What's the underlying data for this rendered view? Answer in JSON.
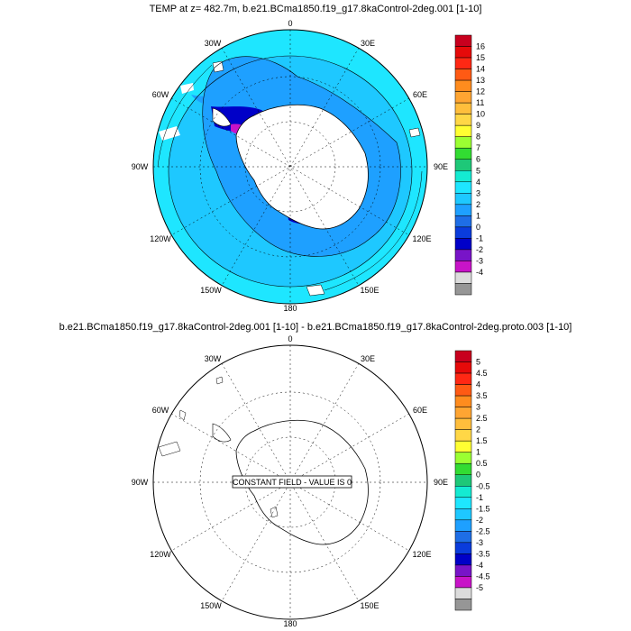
{
  "panel1": {
    "title": "TEMP at z= 482.7m, b.e21.BCma1850.f19_g17.8kaControl-2deg.001 [1-10]",
    "lon_labels": {
      "top": "0",
      "top_left": "30W",
      "top_right": "30E",
      "left_upper": "60W",
      "right_upper": "60E",
      "left": "90W",
      "right": "90E",
      "left_lower": "120W",
      "right_lower": "120E",
      "bottom_left": "150W",
      "bottom_right": "150E",
      "bottom": "180"
    },
    "colorbar": {
      "labels": [
        "16",
        "15",
        "14",
        "13",
        "12",
        "11",
        "10",
        "9",
        "8",
        "7",
        "6",
        "5",
        "4",
        "3",
        "2",
        "1",
        "0",
        "-1",
        "-2",
        "-3",
        "-4"
      ],
      "colors": [
        "#c8001e",
        "#e60a0a",
        "#ff2814",
        "#ff5a14",
        "#ff8c1e",
        "#ffa532",
        "#ffbe3c",
        "#ffd746",
        "#ffff32",
        "#9bff32",
        "#32dc32",
        "#1ec878",
        "#14ebd2",
        "#1ee6ff",
        "#1ec8ff",
        "#1ea0ff",
        "#1e6ee6",
        "#0a3cdc",
        "#0000c8",
        "#7814c8",
        "#c814c8",
        "#dcdcdc",
        "#969696"
      ]
    }
  },
  "panel2": {
    "title": "b.e21.BCma1850.f19_g17.8kaControl-2deg.001 [1-10] - b.e21.BCma1850.f19_g17.8kaControl-2deg.proto.003 [1-10]",
    "lon_labels": {
      "top": "0",
      "top_left": "30W",
      "top_right": "30E",
      "left_upper": "60W",
      "right_upper": "60E",
      "left": "90W",
      "right": "90E",
      "left_lower": "120W",
      "right_lower": "120E",
      "bottom_left": "150W",
      "bottom_right": "150E",
      "bottom": "180"
    },
    "constant_note": "CONSTANT FIELD - VALUE IS 0",
    "colorbar": {
      "labels": [
        "5",
        "4.5",
        "4",
        "3.5",
        "3",
        "2.5",
        "2",
        "1.5",
        "1",
        "0.5",
        "0",
        "-0.5",
        "-1",
        "-1.5",
        "-2",
        "-2.5",
        "-3",
        "-3.5",
        "-4",
        "-4.5",
        "-5"
      ],
      "colors": [
        "#c8001e",
        "#e60a0a",
        "#ff2814",
        "#ff5a14",
        "#ff8c1e",
        "#ffa532",
        "#ffbe3c",
        "#ffd746",
        "#ffff32",
        "#9bff32",
        "#32dc32",
        "#1ec878",
        "#14ebd2",
        "#1ee6ff",
        "#1ec8ff",
        "#1ea0ff",
        "#1e6ee6",
        "#0a3cdc",
        "#0000c8",
        "#7814c8",
        "#c814c8",
        "#dcdcdc",
        "#969696"
      ]
    }
  }
}
